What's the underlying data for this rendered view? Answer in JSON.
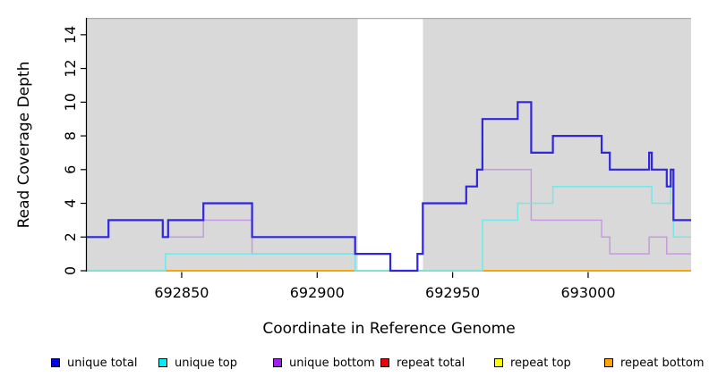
{
  "chart_data": {
    "type": "line",
    "subtype": "step-coverage",
    "title": "",
    "xlabel": "Coordinate in Reference Genome",
    "ylabel": "Read Coverage Depth",
    "xlim": [
      692815,
      693038
    ],
    "ylim": [
      0,
      15
    ],
    "xticks": [
      692850,
      692900,
      692950,
      693000
    ],
    "yticks": [
      0,
      2,
      4,
      6,
      8,
      10,
      12,
      14
    ],
    "grid": false,
    "legend_position": "bottom",
    "band_color": "#d9d9d9",
    "band_border_color": "#ababab",
    "shaded_bands": [
      {
        "x0": 692815,
        "x1": 692915
      },
      {
        "x0": 692939,
        "x1": 693038
      }
    ],
    "unshaded_gap": {
      "x0": 692915,
      "x1": 692939,
      "color": "#ffffff"
    },
    "series": [
      {
        "name": "unique total",
        "legend_color": "#0000ee",
        "line_color": "#2f26dd",
        "line_width": 2.2,
        "steps": [
          [
            692815,
            2
          ],
          [
            692823,
            3
          ],
          [
            692843,
            2
          ],
          [
            692845,
            3
          ],
          [
            692858,
            4
          ],
          [
            692876,
            2
          ],
          [
            692914,
            1
          ],
          [
            692927,
            0
          ],
          [
            692937,
            1
          ],
          [
            692939,
            4
          ],
          [
            692955,
            5
          ],
          [
            692959,
            6
          ],
          [
            692961,
            9
          ],
          [
            692974,
            10
          ],
          [
            692979,
            7
          ],
          [
            692987,
            8
          ],
          [
            693005,
            7
          ],
          [
            693008,
            6
          ],
          [
            693022.5,
            7
          ],
          [
            693023.5,
            6
          ],
          [
            693029,
            5
          ],
          [
            693030.5,
            6
          ],
          [
            693031.5,
            3
          ]
        ]
      },
      {
        "name": "unique top",
        "legend_color": "#00eeee",
        "line_color": "#74e7e9",
        "line_width": 1.5,
        "steps": [
          [
            692815,
            0
          ],
          [
            692844,
            1
          ],
          [
            692914,
            0
          ],
          [
            692961,
            3
          ],
          [
            692974,
            4
          ],
          [
            692987,
            5
          ],
          [
            693023.5,
            4
          ],
          [
            693030.5,
            5
          ],
          [
            693031.5,
            2
          ]
        ]
      },
      {
        "name": "unique bottom",
        "legend_color": "#a020f0",
        "line_color": "#c79ae0",
        "line_width": 1.5,
        "steps": [
          [
            692815,
            2
          ],
          [
            692823,
            3
          ],
          [
            692843,
            2
          ],
          [
            692858,
            3
          ],
          [
            692876,
            1
          ],
          [
            692927,
            0
          ],
          [
            692937,
            1
          ],
          [
            692939,
            4
          ],
          [
            692955,
            5
          ],
          [
            692959,
            6
          ],
          [
            692979,
            3
          ],
          [
            693005,
            2
          ],
          [
            693008,
            1
          ],
          [
            693022.5,
            2
          ],
          [
            693029,
            1
          ]
        ]
      },
      {
        "name": "repeat total",
        "legend_color": "#ee0000",
        "line_color": "#ee0000",
        "line_width": 1.3,
        "steps": [
          [
            692815,
            0
          ]
        ]
      },
      {
        "name": "repeat top",
        "legend_color": "#ffff00",
        "line_color": "#ffff00",
        "line_width": 1.3,
        "steps": [
          [
            692815,
            0
          ]
        ]
      },
      {
        "name": "repeat bottom",
        "legend_color": "#ffa500",
        "line_color": "#ff9f00",
        "line_width": 1.7,
        "steps": [
          [
            692815,
            0
          ]
        ]
      }
    ],
    "zero_line_blend_segments": [
      {
        "x0": 692815,
        "x1": 692844,
        "color": "#98d898"
      },
      {
        "x0": 692914,
        "x1": 692961,
        "color": "#98d898"
      }
    ]
  },
  "legend": {
    "items": [
      {
        "label": "unique total",
        "color": "#0000ee"
      },
      {
        "label": "unique top",
        "color": "#00eeee"
      },
      {
        "label": "unique bottom",
        "color": "#a020f0"
      },
      {
        "label": "repeat total",
        "color": "#ee0000"
      },
      {
        "label": "repeat top",
        "color": "#ffff00"
      },
      {
        "label": "repeat bottom",
        "color": "#ffa500"
      }
    ]
  }
}
